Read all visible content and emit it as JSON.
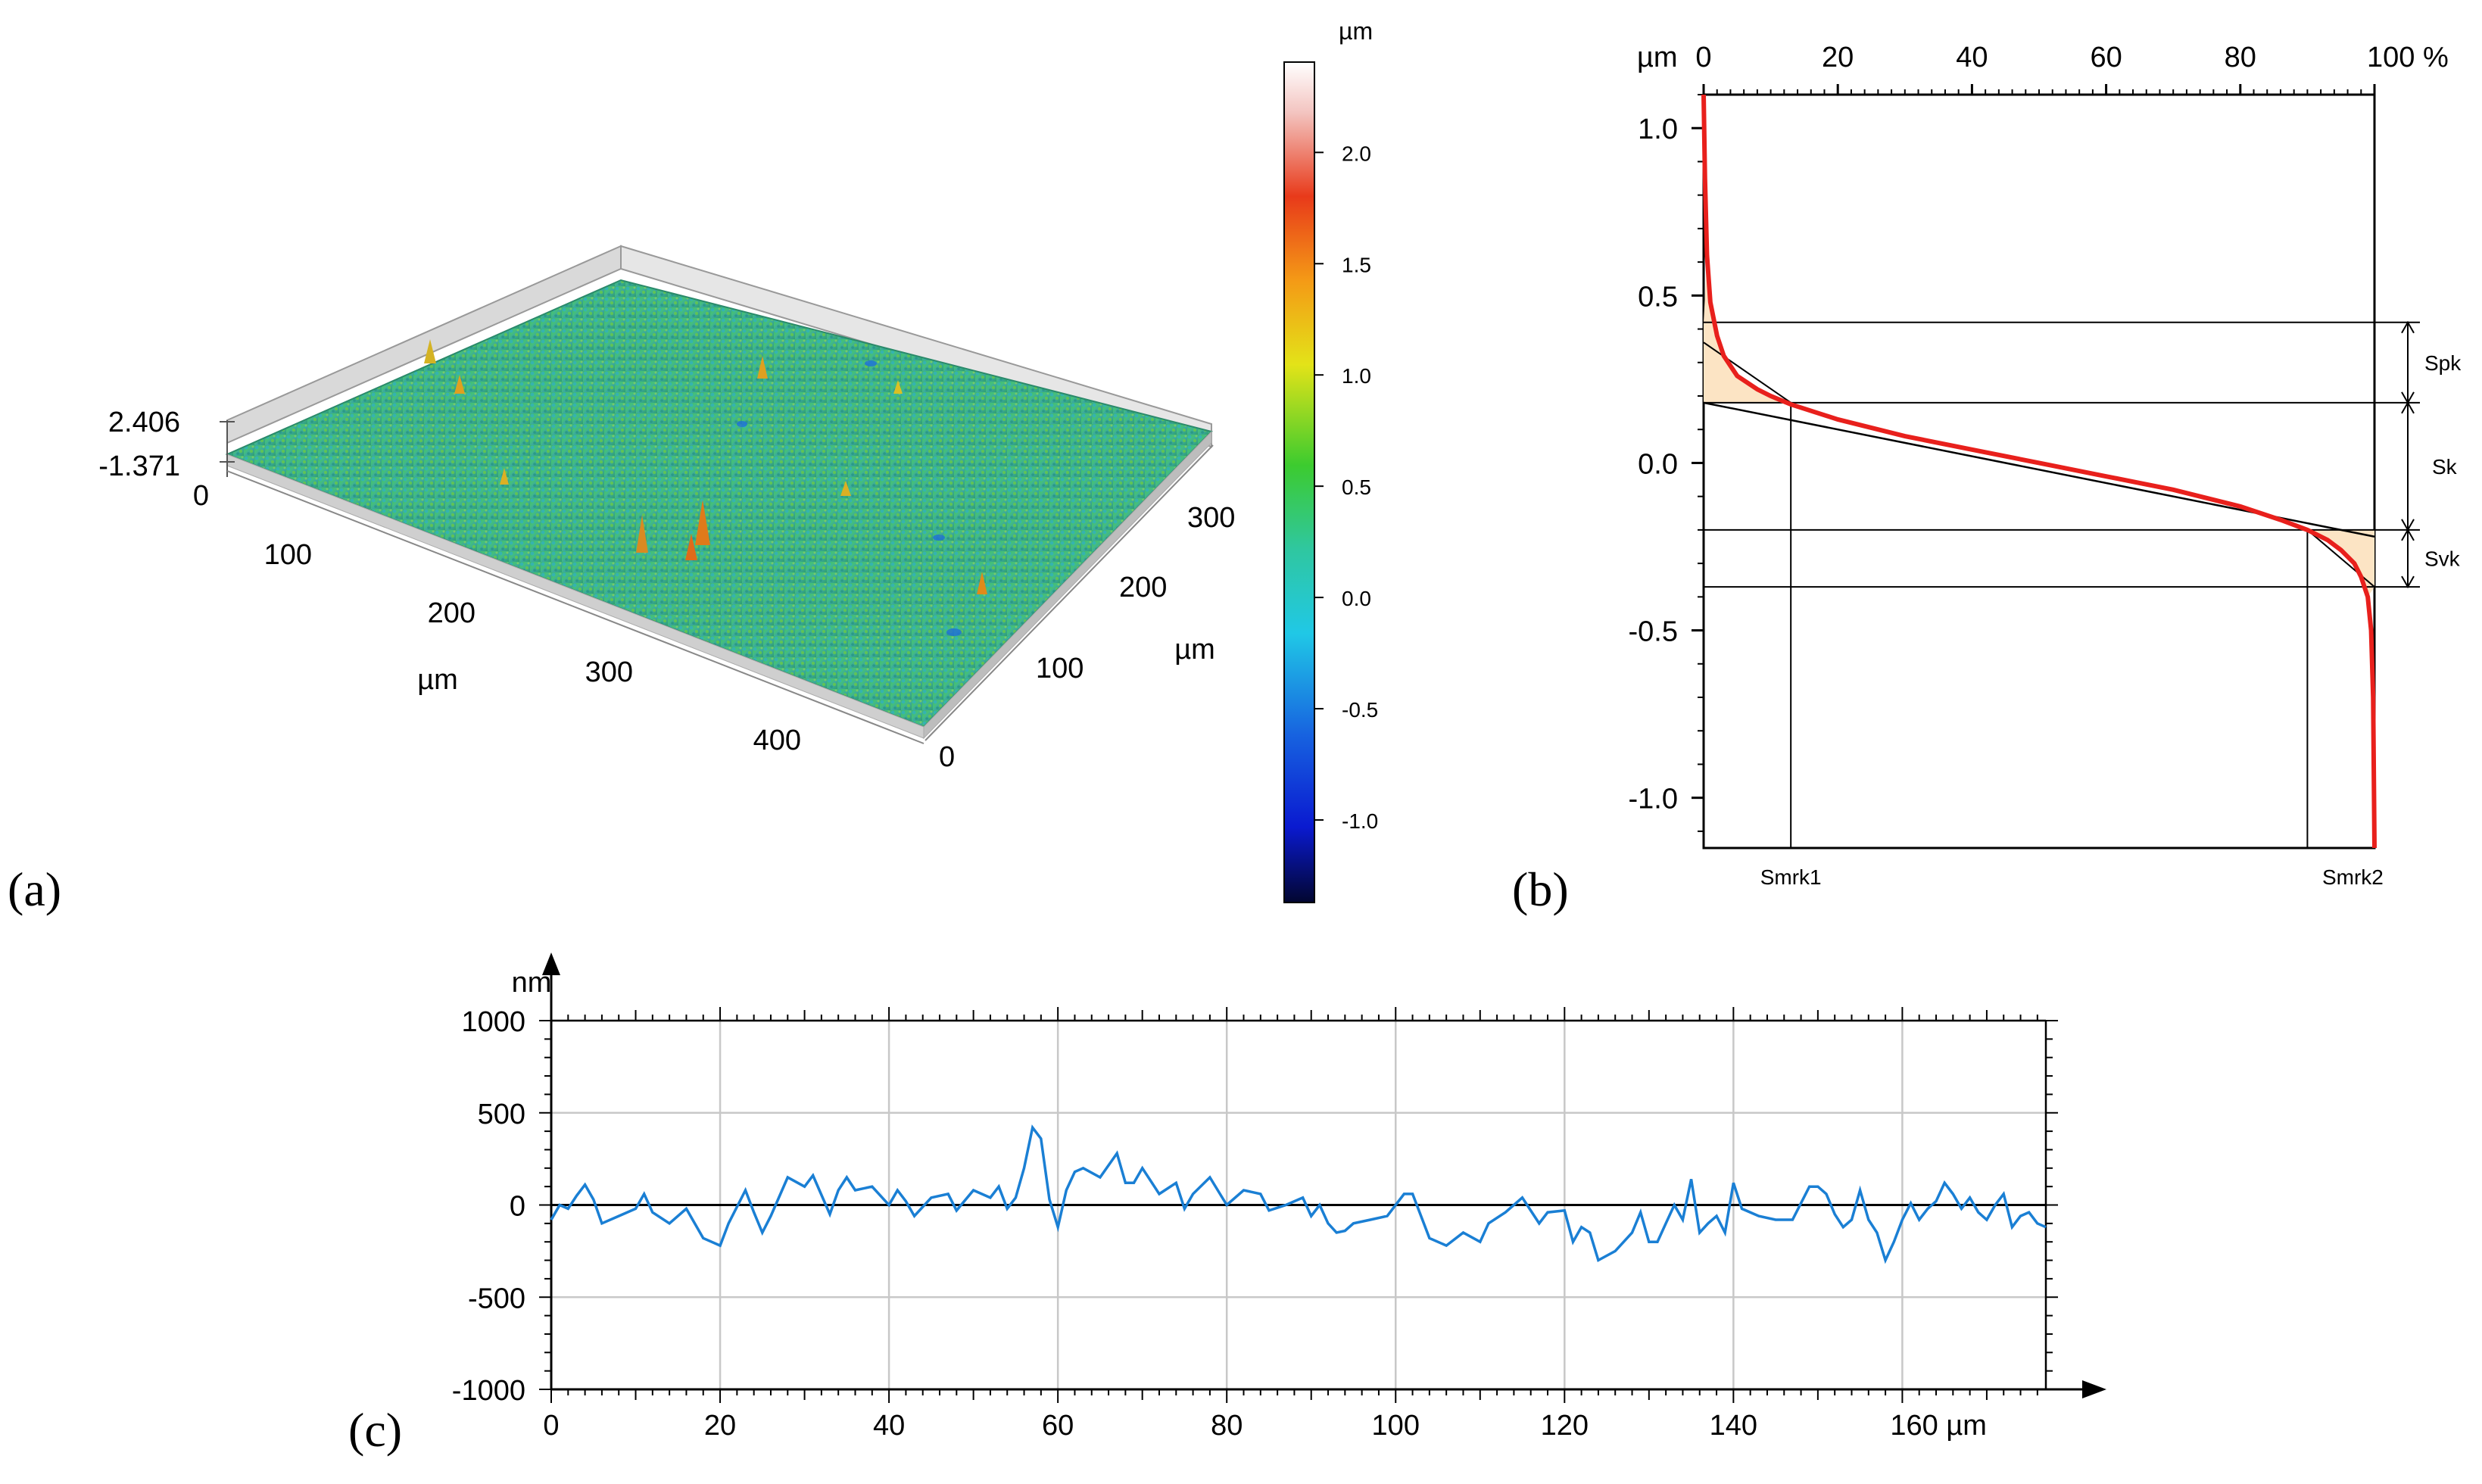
{
  "labels": {
    "a": "(a)",
    "b": "(b)",
    "c": "(c)"
  },
  "panel_a": {
    "z_top": "2.406",
    "z_bottom": "-1.371",
    "z_zero": "0",
    "x_ticks": [
      "100",
      "200",
      "300",
      "400"
    ],
    "x_unit": "µm",
    "y_ticks": [
      "0",
      "100",
      "200",
      "300"
    ],
    "y_unit": "µm",
    "colorbar": {
      "unit": "µm",
      "ticks": [
        "2.0",
        "1.5",
        "1.0",
        "0.5",
        "0.0",
        "-0.5",
        "-1.0"
      ],
      "tick_values": [
        2.0,
        1.5,
        1.0,
        0.5,
        0.0,
        -0.5,
        -1.0
      ],
      "min": -1.371,
      "max": 2.406
    }
  },
  "chart_data": [
    {
      "type": "line",
      "y_unit": "µm",
      "x_unit": "%",
      "x_ticks": [
        "0",
        "20",
        "40",
        "60",
        "80",
        "100 %"
      ],
      "y_ticks": [
        "1.0",
        "0.5",
        "0.0",
        "-0.5",
        "-1.0"
      ],
      "xlim": [
        0,
        100
      ],
      "ylim": [
        -1.15,
        1.1
      ],
      "series": [
        {
          "color": "#e8201c",
          "x": [
            0,
            0.2,
            0.5,
            1,
            2,
            3,
            5,
            8,
            10,
            13,
            20,
            30,
            40,
            50,
            60,
            70,
            80,
            86,
            90,
            93,
            95,
            97,
            98,
            99,
            99.5,
            99.8,
            100
          ],
          "y": [
            1.1,
            0.85,
            0.62,
            0.48,
            0.38,
            0.32,
            0.26,
            0.22,
            0.2,
            0.175,
            0.13,
            0.08,
            0.04,
            0.0,
            -0.04,
            -0.08,
            -0.13,
            -0.17,
            -0.2,
            -0.23,
            -0.26,
            -0.3,
            -0.34,
            -0.4,
            -0.5,
            -0.7,
            -1.15
          ]
        }
      ],
      "annotations": [
        "Spk",
        "Sk",
        "Svk",
        "Smrk1",
        "Smrk2"
      ],
      "levels": {
        "spk_top": 0.42,
        "sk_top": 0.18,
        "sk_bottom": -0.2,
        "svk_bottom": -0.37
      },
      "smrk1": 13,
      "smrk2": 90,
      "fill_color": "#fce4c4"
    },
    {
      "type": "line",
      "y_unit": "nm",
      "x_unit": "µm",
      "x_ticks": [
        "0",
        "20",
        "40",
        "60",
        "80",
        "100",
        "120",
        "140",
        "160 µm"
      ],
      "y_ticks": [
        "1000",
        "500",
        "0",
        "-500",
        "-1000"
      ],
      "xlim": [
        0,
        177
      ],
      "ylim": [
        -1000,
        1000
      ],
      "grid": true,
      "series": [
        {
          "color": "#1a7fd4",
          "x": [
            0,
            1,
            2,
            3,
            4,
            5,
            6,
            8,
            10,
            11,
            12,
            14,
            16,
            18,
            20,
            21,
            23,
            24,
            25,
            26,
            28,
            30,
            31,
            33,
            34,
            35,
            36,
            38,
            40,
            41,
            42,
            43,
            45,
            47,
            48,
            50,
            52,
            53,
            54,
            55,
            56,
            57,
            58,
            59,
            60,
            61,
            62,
            63,
            65,
            67,
            68,
            69,
            70,
            72,
            74,
            75,
            76,
            78,
            80,
            82,
            84,
            85,
            87,
            89,
            90,
            91,
            92,
            93,
            94,
            95,
            97,
            99,
            101,
            102,
            104,
            106,
            108,
            110,
            111,
            113,
            115,
            117,
            118,
            120,
            121,
            122,
            123,
            124,
            126,
            128,
            129,
            130,
            131,
            132,
            133,
            134,
            135,
            136,
            137,
            138,
            139,
            140,
            141,
            143,
            145,
            147,
            149,
            150,
            151,
            152,
            153,
            154,
            155,
            156,
            157,
            158,
            159,
            160,
            161,
            162,
            163,
            164,
            165,
            166,
            167,
            168,
            169,
            170,
            171,
            172,
            173,
            174,
            175,
            176,
            177
          ],
          "y": [
            -80,
            0,
            -20,
            50,
            110,
            30,
            -100,
            -60,
            -20,
            60,
            -40,
            -100,
            -20,
            -180,
            -220,
            -100,
            80,
            -40,
            -150,
            -60,
            150,
            100,
            160,
            -50,
            80,
            150,
            80,
            100,
            0,
            80,
            20,
            -60,
            40,
            60,
            -30,
            80,
            40,
            100,
            -20,
            40,
            200,
            420,
            360,
            30,
            -120,
            80,
            180,
            200,
            150,
            280,
            120,
            120,
            200,
            60,
            120,
            -20,
            60,
            150,
            0,
            80,
            60,
            -30,
            0,
            40,
            -60,
            0,
            -100,
            -150,
            -140,
            -100,
            -80,
            -60,
            60,
            60,
            -180,
            -220,
            -150,
            -200,
            -100,
            -40,
            40,
            -100,
            -40,
            -30,
            -200,
            -120,
            -150,
            -300,
            -250,
            -150,
            -40,
            -200,
            -200,
            -100,
            0,
            -80,
            140,
            -150,
            -100,
            -60,
            -150,
            120,
            -20,
            -60,
            -80,
            -80,
            100,
            100,
            60,
            -50,
            -120,
            -80,
            80,
            -80,
            -150,
            -300,
            -200,
            -80,
            10,
            -80,
            -20,
            20,
            120,
            60,
            -20,
            40,
            -40,
            -80,
            0,
            60,
            -120,
            -60,
            -40,
            -100,
            -120
          ]
        }
      ]
    }
  ],
  "colors": {
    "axis": "#000000",
    "grid": "#c8c8c8",
    "profile": "#1a7fd4",
    "curve": "#e8201c",
    "fill": "#fce4c4"
  }
}
